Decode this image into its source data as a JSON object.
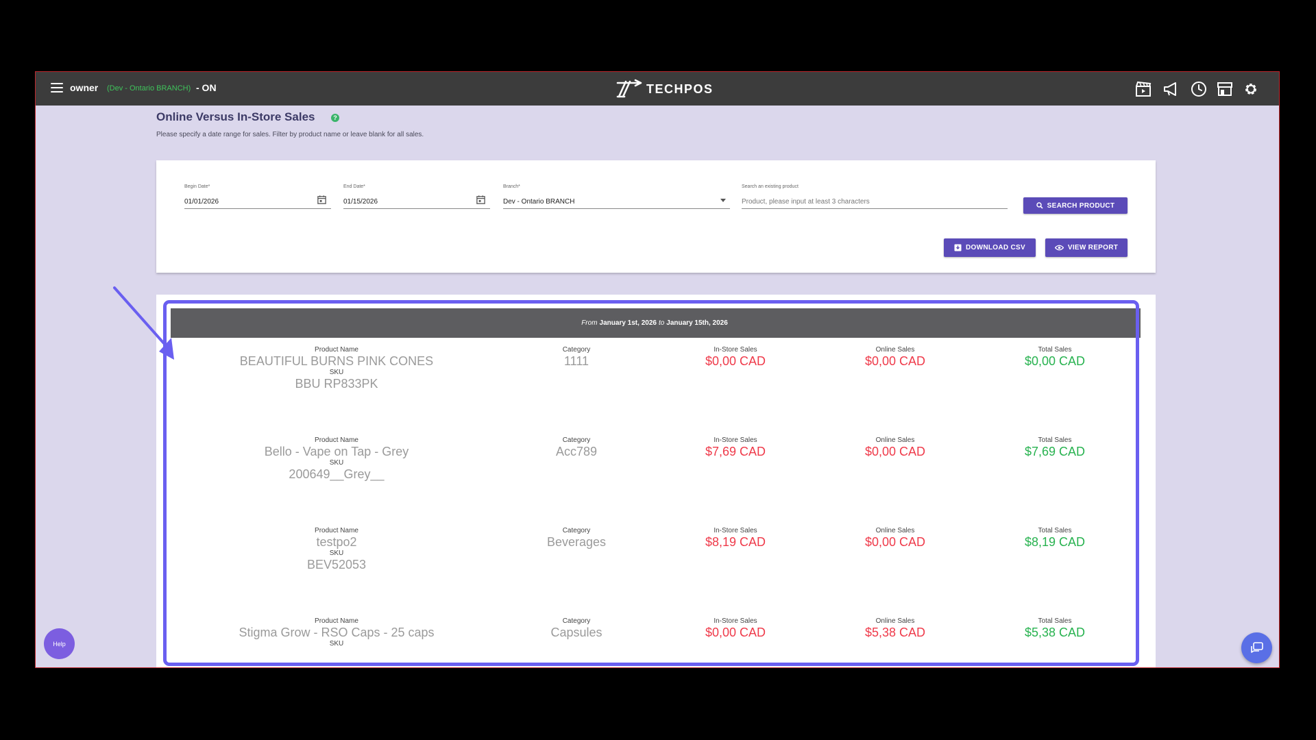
{
  "header": {
    "user": "owner",
    "branch": "(Dev - Ontario BRANCH)",
    "status": "- ON",
    "logo": "TECHPOS",
    "icons": [
      "clapperboard-icon",
      "megaphone-icon",
      "clock-icon",
      "store-icon",
      "gear-icon"
    ]
  },
  "page": {
    "title": "Online Versus In-Store Sales",
    "subtitle": "Please specify a date range for sales. Filter by product name or leave blank for all sales."
  },
  "filters": {
    "begin_label": "Begin Date*",
    "begin_value": "01/01/2026",
    "end_label": "End Date*",
    "end_value": "01/15/2026",
    "branch_label": "Branch*",
    "branch_value": "Dev - Ontario BRANCH",
    "search_label": "Search an existing product",
    "search_placeholder": "Product, please input at least 3 characters",
    "search_button": "SEARCH PRODUCT",
    "download_button": "DOWNLOAD CSV",
    "view_button": "VIEW REPORT"
  },
  "report": {
    "from_word": "From",
    "from_date": "January 1st, 2026",
    "to_word": "to",
    "to_date": "January 15th, 2026",
    "headers": {
      "product_name": "Product Name",
      "sku": "SKU",
      "category": "Category",
      "instore": "In-Store Sales",
      "online": "Online Sales",
      "total": "Total Sales"
    },
    "rows": [
      {
        "name": "BEAUTIFUL BURNS PINK CONES",
        "sku": "BBU RP833PK",
        "category": "1111",
        "instore": "$0,00 CAD",
        "online": "$0,00 CAD",
        "total": "$0,00 CAD"
      },
      {
        "name": "Bello - Vape on Tap - Grey",
        "sku": "200649__Grey__",
        "category": "Acc789",
        "instore": "$7,69 CAD",
        "online": "$0,00 CAD",
        "total": "$7,69 CAD"
      },
      {
        "name": "testpo2",
        "sku": "BEV52053",
        "category": "Beverages",
        "instore": "$8,19 CAD",
        "online": "$0,00 CAD",
        "total": "$8,19 CAD"
      },
      {
        "name": "Stigma Grow - RSO Caps - 25 caps",
        "sku": "",
        "category": "Capsules",
        "instore": "$0,00 CAD",
        "online": "$5,38 CAD",
        "total": "$5,38 CAD"
      }
    ]
  },
  "floating": {
    "help": "Help"
  }
}
